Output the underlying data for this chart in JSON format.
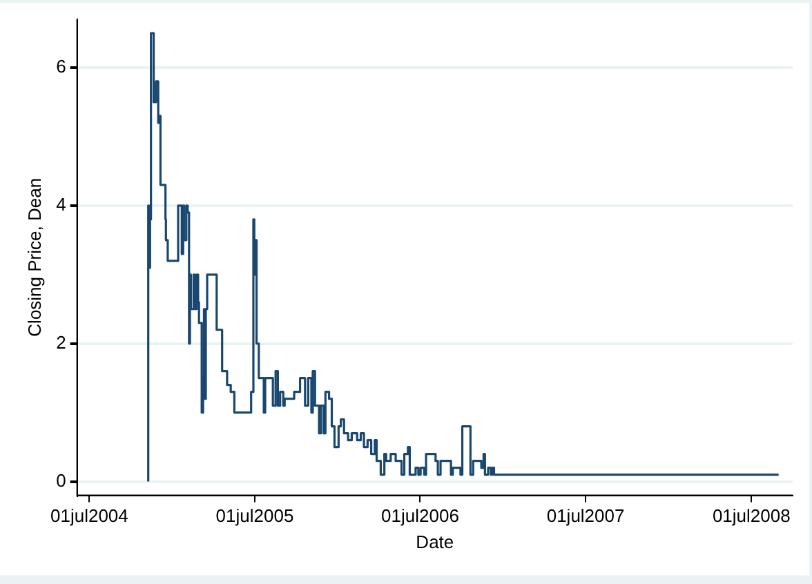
{
  "chart_data": {
    "type": "step",
    "xlabel": "Date",
    "ylabel": "Closing Price, Dean",
    "x": [
      "2004-11-08",
      "2004-11-09",
      "2004-11-12",
      "2004-11-13",
      "2004-11-14",
      "2004-11-20",
      "2004-11-25",
      "2004-11-30",
      "2004-12-03",
      "2004-12-05",
      "2004-12-16",
      "2004-12-17",
      "2004-12-21",
      "2005-01-13",
      "2005-01-21",
      "2005-01-24",
      "2005-01-26",
      "2005-01-31",
      "2005-02-03",
      "2005-02-06",
      "2005-02-08",
      "2005-02-10",
      "2005-02-16",
      "2005-02-19",
      "2005-02-23",
      "2005-02-26",
      "2005-02-28",
      "2005-03-06",
      "2005-03-09",
      "2005-03-11",
      "2005-03-13",
      "2005-03-15",
      "2005-03-18",
      "2005-04-08",
      "2005-04-20",
      "2005-05-01",
      "2005-05-09",
      "2005-05-17",
      "2005-06-23",
      "2005-06-28",
      "2005-06-30",
      "2005-07-02",
      "2005-07-05",
      "2005-07-10",
      "2005-07-21",
      "2005-07-24",
      "2005-08-10",
      "2005-08-16",
      "2005-08-21",
      "2005-08-26",
      "2005-09-02",
      "2005-09-05",
      "2005-09-26",
      "2005-10-09",
      "2005-10-20",
      "2005-10-27",
      "2005-11-03",
      "2005-11-06",
      "2005-11-11",
      "2005-11-20",
      "2005-11-24",
      "2005-11-30",
      "2005-12-04",
      "2005-12-12",
      "2005-12-18",
      "2005-12-24",
      "2006-01-02",
      "2006-01-07",
      "2006-01-14",
      "2006-01-23",
      "2006-01-31",
      "2006-02-12",
      "2006-02-20",
      "2006-02-27",
      "2006-03-07",
      "2006-03-15",
      "2006-03-23",
      "2006-03-27",
      "2006-04-05",
      "2006-04-13",
      "2006-04-17",
      "2006-04-27",
      "2006-05-08",
      "2006-05-21",
      "2006-05-27",
      "2006-06-04",
      "2006-06-08",
      "2006-06-21",
      "2006-06-27",
      "2006-07-02",
      "2006-07-10",
      "2006-07-14",
      "2006-08-04",
      "2006-08-09",
      "2006-08-15",
      "2006-09-07",
      "2006-09-11",
      "2006-09-28",
      "2006-10-02",
      "2006-10-20",
      "2006-10-26",
      "2006-11-13",
      "2006-11-18",
      "2006-11-21",
      "2006-11-28",
      "2006-12-04",
      "2006-12-07",
      "2006-12-11",
      "2006-12-16",
      "2008-08-30"
    ],
    "series": [
      {
        "color": "#1a476f",
        "values": [
          0,
          4.0,
          3.1,
          4.0,
          3.8,
          6.5,
          5.5,
          5.8,
          5.2,
          5.3,
          4.3,
          3.8,
          3.5,
          3.2,
          4.0,
          3.3,
          4.0,
          3.5,
          4.0,
          3.9,
          2.0,
          3.0,
          2.5,
          3.0,
          2.5,
          3.0,
          2.6,
          2.3,
          1.0,
          1.5,
          2.5,
          1.2,
          2.5,
          3.0,
          2.2,
          1.6,
          1.4,
          1.3,
          1.0,
          1.3,
          3.8,
          3.0,
          3.5,
          2.0,
          1.5,
          1.0,
          1.5,
          1.1,
          1.6,
          1.1,
          1.3,
          1.1,
          1.2,
          1.3,
          1.5,
          1.1,
          1.5,
          1.0,
          1.6,
          1.1,
          0.7,
          1.1,
          0.7,
          1.3,
          1.2,
          0.8,
          0.5,
          0.8,
          0.9,
          0.7,
          0.6,
          0.7,
          0.6,
          0.7,
          0.5,
          0.6,
          0.4,
          0.6,
          0.3,
          0.1,
          0.4,
          0.3,
          0.4,
          0.3,
          0.1,
          0.4,
          0.5,
          0.1,
          0.2,
          0.1,
          0.2,
          0.1,
          0.4,
          0.3,
          0.1,
          0.3,
          0.1,
          0.2,
          0.1,
          0.8,
          0.1,
          0.3,
          0.2,
          0.4,
          0.1,
          0.2,
          0.1,
          0.2,
          0.1,
          0.1
        ]
      }
    ],
    "xlim": [
      "2004-06-04",
      "2008-09-30"
    ],
    "xticks": [
      {
        "value": "2004-07-01",
        "label": "01jul2004"
      },
      {
        "value": "2005-07-01",
        "label": "01jul2005"
      },
      {
        "value": "2006-07-01",
        "label": "01jul2006"
      },
      {
        "value": "2007-07-01",
        "label": "01jul2007"
      },
      {
        "value": "2008-07-01",
        "label": "01jul2008"
      }
    ],
    "ylim": [
      -0.2,
      6.7
    ],
    "yticks": [
      0,
      2,
      4,
      6
    ],
    "grid": "y",
    "legend": false,
    "marker": "none",
    "line_style": "solid"
  }
}
